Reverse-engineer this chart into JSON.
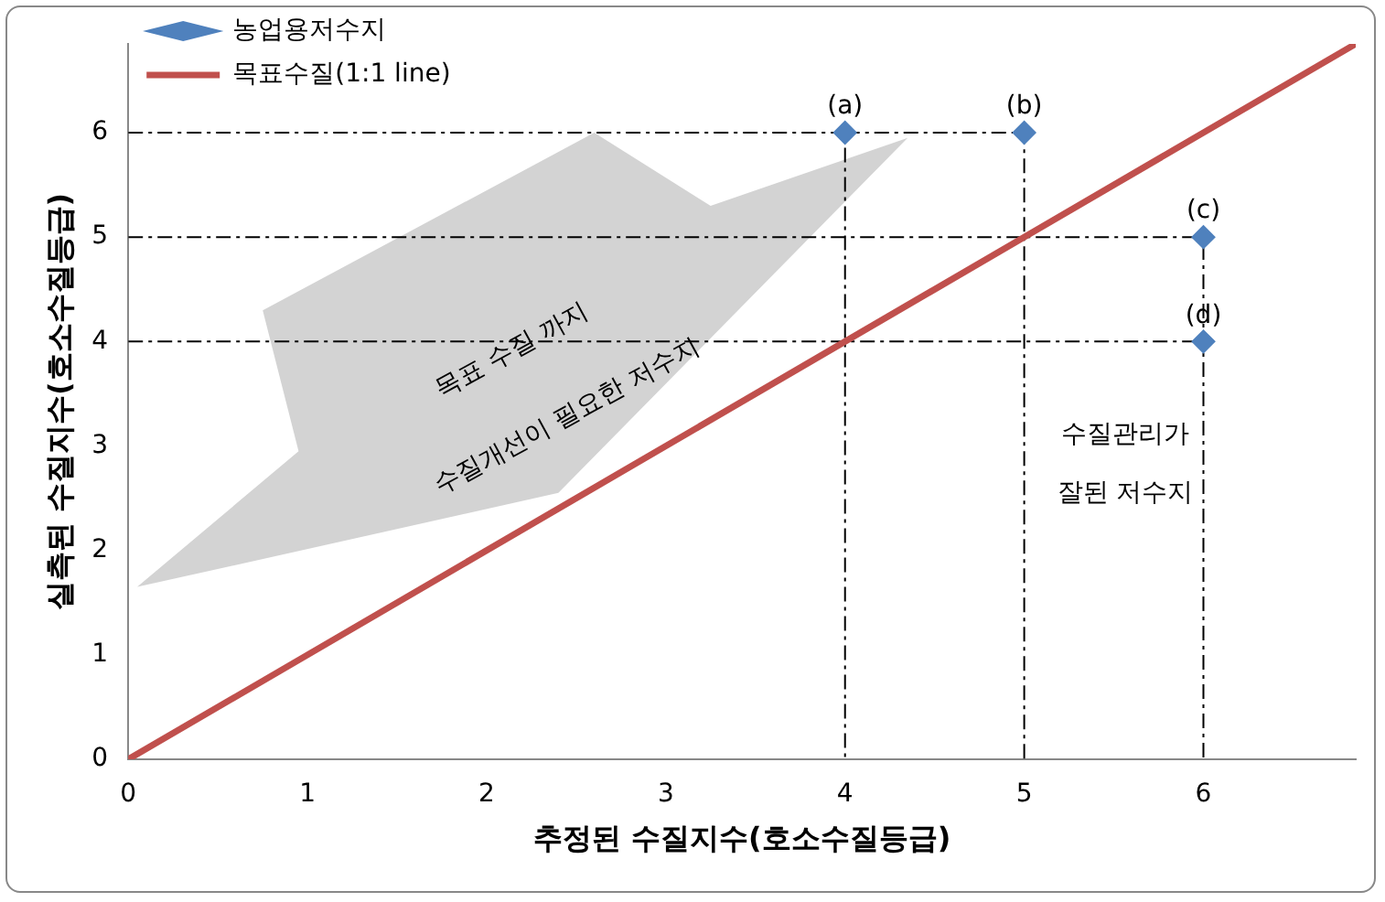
{
  "chart_data": {
    "type": "scatter",
    "xlabel": "추정된 수질지수(호소수질등급)",
    "ylabel": "실측된 수질지수(호소수질등급)",
    "xlim": [
      0,
      6.85
    ],
    "ylim": [
      0,
      6.85
    ],
    "xticks": [
      0,
      1,
      2,
      3,
      4,
      5,
      6
    ],
    "yticks": [
      0,
      1,
      2,
      3,
      4,
      5,
      6
    ],
    "grid": false,
    "legend": "top left",
    "series": [
      {
        "name": "농업용저수지",
        "marker": "diamond",
        "color": "#4f81bd",
        "x": [
          4,
          5,
          6,
          6
        ],
        "values": [
          6,
          6,
          5,
          4
        ]
      },
      {
        "name": "목표수질(1:1 line)",
        "type": "line",
        "marker": "none",
        "line_style": "solid",
        "color": "#c0504d",
        "x": [
          0,
          6.85
        ],
        "values": [
          0,
          6.85
        ]
      },
      {
        "type": "line",
        "marker": "none",
        "line_style": "dashed",
        "color": "#000000",
        "x": [
          0,
          4,
          4
        ],
        "values": [
          6,
          6,
          0
        ]
      },
      {
        "type": "line",
        "marker": "none",
        "line_style": "dashed",
        "color": "#000000",
        "x": [
          4,
          5,
          5
        ],
        "values": [
          6,
          6,
          0
        ]
      },
      {
        "type": "line",
        "marker": "none",
        "line_style": "dashed",
        "color": "#000000",
        "x": [
          0,
          6,
          6
        ],
        "values": [
          5,
          5,
          0
        ]
      },
      {
        "type": "line",
        "marker": "none",
        "line_style": "dashed",
        "color": "#000000",
        "x": [
          0,
          6
        ],
        "values": [
          4,
          4
        ]
      }
    ],
    "annotations": [
      {
        "text": "(a)",
        "x": 4,
        "y": 6
      },
      {
        "text": "(b)",
        "x": 5,
        "y": 6
      },
      {
        "text": "(c)",
        "x": 6,
        "y": 5
      },
      {
        "text": "(d)",
        "x": 6,
        "y": 4
      },
      "목표 수질 까지",
      "수질개선이 필요한 저수지",
      "수질관리가",
      "잘된 저수지"
    ]
  }
}
